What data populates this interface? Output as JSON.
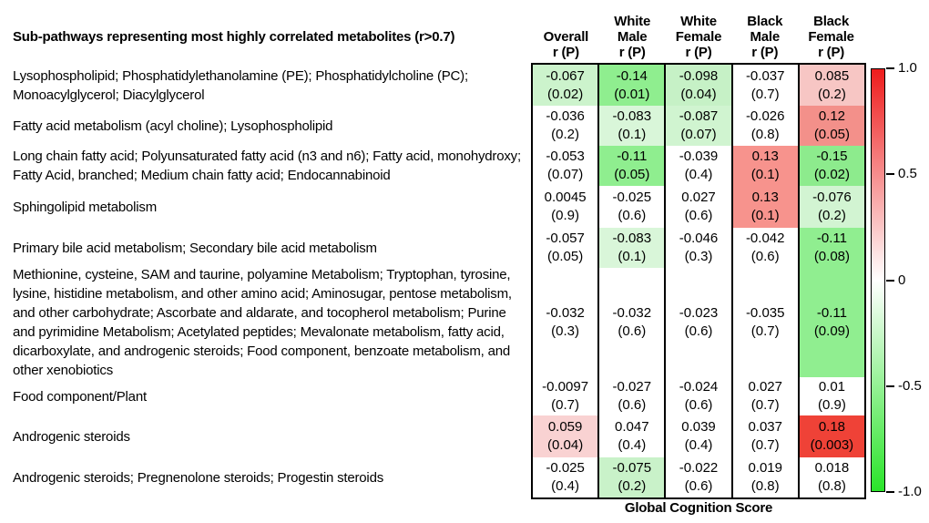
{
  "figure": {
    "title": "Sub-pathways representing most highly correlated metabolites (r>0.7)",
    "x_axis_label": "Global Cognition Score"
  },
  "chart_data": {
    "type": "heatmap",
    "title": "Sub-pathways representing most highly correlated metabolites (r>0.7)",
    "xlabel": "Global Cognition Score",
    "value_format": "r (P)",
    "colorbar": {
      "position": "right",
      "min": -1.0,
      "max": 1.0,
      "ticks": [
        "1.0",
        "0.5",
        "0",
        "-0.5",
        "-1.0"
      ],
      "top_color": "#ee1c1c",
      "mid_color": "#ffffff",
      "bottom_color": "#2ae42a"
    },
    "columns": [
      {
        "lines": [
          "Overall",
          "r (P)"
        ]
      },
      {
        "lines": [
          "White",
          "Male",
          "r (P)"
        ]
      },
      {
        "lines": [
          "White",
          "Female",
          "r (P)"
        ]
      },
      {
        "lines": [
          "Black",
          "Male",
          "r (P)"
        ]
      },
      {
        "lines": [
          "Black",
          "Female",
          "r (P)"
        ]
      }
    ],
    "rows": [
      {
        "pathway": "Lysophospholipid; Phosphatidylethanolamine (PE); Phosphatidylcholine (PC); Monoacylglycerol; Diacylglycerol",
        "cells": [
          {
            "r": "-0.067",
            "p": "(0.02)",
            "bg": "#ccf3cc"
          },
          {
            "r": "-0.14",
            "p": "(0.01)",
            "bg": "#8fee8f"
          },
          {
            "r": "-0.098",
            "p": "(0.04)",
            "bg": "#c6f1c6"
          },
          {
            "r": "-0.037",
            "p": "(0.7)",
            "bg": "#ffffff"
          },
          {
            "r": "0.085",
            "p": "(0.2)",
            "bg": "#f7c6c4"
          }
        ]
      },
      {
        "pathway": "Fatty acid metabolism (acyl choline); Lysophospholipid",
        "cells": [
          {
            "r": "-0.036",
            "p": "(0.2)",
            "bg": "#ffffff"
          },
          {
            "r": "-0.083",
            "p": "(0.1)",
            "bg": "#d9f6d9"
          },
          {
            "r": "-0.087",
            "p": "(0.07)",
            "bg": "#d0f4d0"
          },
          {
            "r": "-0.026",
            "p": "(0.8)",
            "bg": "#ffffff"
          },
          {
            "r": "0.12",
            "p": "(0.05)",
            "bg": "#f3908a"
          }
        ]
      },
      {
        "pathway": "Long chain fatty acid; Polyunsaturated fatty acid (n3 and n6); Fatty acid, monohydroxy; Fatty Acid, branched; Medium chain fatty acid; Endocannabinoid",
        "cells": [
          {
            "r": "-0.053",
            "p": "(0.07)",
            "bg": "#ffffff"
          },
          {
            "r": "-0.11",
            "p": "(0.05)",
            "bg": "#8fee8f"
          },
          {
            "r": "-0.039",
            "p": "(0.4)",
            "bg": "#ffffff"
          },
          {
            "r": "0.13",
            "p": "(0.1)",
            "bg": "#f7938d"
          },
          {
            "r": "-0.15",
            "p": "(0.02)",
            "bg": "#8deb8d"
          }
        ]
      },
      {
        "pathway": "Sphingolipid metabolism",
        "cells": [
          {
            "r": "0.0045",
            "p": "(0.9)",
            "bg": "#ffffff"
          },
          {
            "r": "-0.025",
            "p": "(0.6)",
            "bg": "#ffffff"
          },
          {
            "r": "0.027",
            "p": "(0.6)",
            "bg": "#ffffff"
          },
          {
            "r": "0.13",
            "p": "(0.1)",
            "bg": "#f7938d"
          },
          {
            "r": "-0.076",
            "p": "(0.2)",
            "bg": "#d2f4d2"
          }
        ]
      },
      {
        "pathway": "Primary bile acid metabolism; Secondary bile acid metabolism",
        "cells": [
          {
            "r": "-0.057",
            "p": "(0.05)",
            "bg": "#ffffff"
          },
          {
            "r": "-0.083",
            "p": "(0.1)",
            "bg": "#d9f6d9"
          },
          {
            "r": "-0.046",
            "p": "(0.3)",
            "bg": "#ffffff"
          },
          {
            "r": "-0.042",
            "p": "(0.6)",
            "bg": "#ffffff"
          },
          {
            "r": "-0.11",
            "p": "(0.08)",
            "bg": "#90ee90"
          }
        ]
      },
      {
        "pathway": "Methionine, cysteine, SAM and taurine, polyamine Metabolism; Tryptophan, tyrosine, lysine, histidine metabolism, and other amino acid; Aminosugar, pentose metabolism, and other carbohydrate; Ascorbate and aldarate, and tocopherol metabolism; Purine and pyrimidine Metabolism; Acetylated peptides; Mevalonate metabolism, fatty acid, dicarboxylate, and androgenic steroids; Food component, benzoate metabolism, and other xenobiotics",
        "cells": [
          {
            "r": "-0.032",
            "p": "(0.3)",
            "bg": "#ffffff"
          },
          {
            "r": "-0.032",
            "p": "(0.6)",
            "bg": "#ffffff"
          },
          {
            "r": "-0.023",
            "p": "(0.6)",
            "bg": "#ffffff"
          },
          {
            "r": "-0.035",
            "p": "(0.7)",
            "bg": "#ffffff"
          },
          {
            "r": "-0.11",
            "p": "(0.09)",
            "bg": "#90ee90"
          }
        ]
      },
      {
        "pathway": "Food component/Plant",
        "cells": [
          {
            "r": "-0.0097",
            "p": "(0.7)",
            "bg": "#ffffff"
          },
          {
            "r": "-0.027",
            "p": "(0.6)",
            "bg": "#ffffff"
          },
          {
            "r": "-0.024",
            "p": "(0.6)",
            "bg": "#ffffff"
          },
          {
            "r": "0.027",
            "p": "(0.7)",
            "bg": "#ffffff"
          },
          {
            "r": "0.01",
            "p": "(0.9)",
            "bg": "#ffffff"
          }
        ]
      },
      {
        "pathway": "Androgenic steroids",
        "cells": [
          {
            "r": "0.059",
            "p": "(0.04)",
            "bg": "#f9d2d2"
          },
          {
            "r": "0.047",
            "p": "(0.4)",
            "bg": "#ffffff"
          },
          {
            "r": "0.039",
            "p": "(0.4)",
            "bg": "#ffffff"
          },
          {
            "r": "0.037",
            "p": "(0.7)",
            "bg": "#ffffff"
          },
          {
            "r": "0.18",
            "p": "(0.003)",
            "bg": "#ef4237"
          }
        ]
      },
      {
        "pathway": "Androgenic steroids; Pregnenolone steroids; Progestin steroids",
        "cells": [
          {
            "r": "-0.025",
            "p": "(0.4)",
            "bg": "#ffffff"
          },
          {
            "r": "-0.075",
            "p": "(0.2)",
            "bg": "#c9f2c9"
          },
          {
            "r": "-0.022",
            "p": "(0.6)",
            "bg": "#ffffff"
          },
          {
            "r": "0.019",
            "p": "(0.8)",
            "bg": "#ffffff"
          },
          {
            "r": "0.018",
            "p": "(0.8)",
            "bg": "#ffffff"
          }
        ]
      }
    ]
  }
}
